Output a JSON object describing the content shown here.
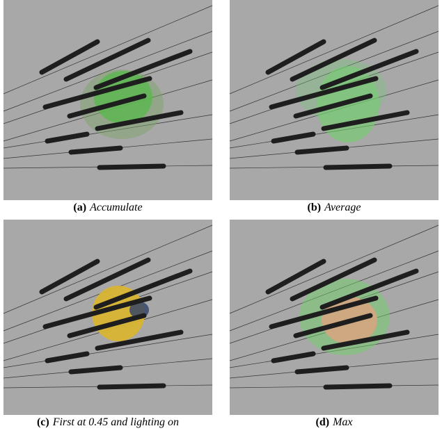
{
  "figure": {
    "panels": [
      {
        "label": "(a)",
        "caption": "Accumulate"
      },
      {
        "label": "(b)",
        "caption": "Average"
      },
      {
        "label": "(c)",
        "caption": "First at 0.45 and lighting on"
      },
      {
        "label": "(d)",
        "caption": "Max"
      }
    ]
  }
}
